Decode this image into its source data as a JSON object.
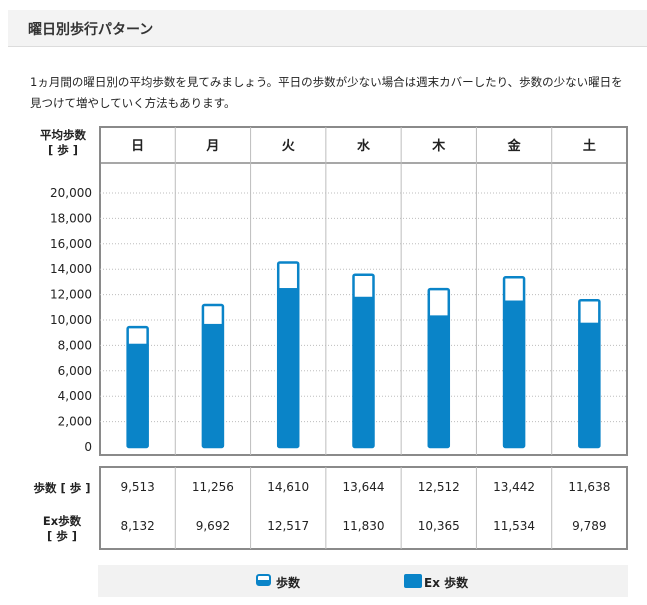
{
  "header": {
    "title": "曜日別歩行パターン"
  },
  "description": "1ヵ月間の曜日別の平均歩数を見てみましょう。平日の歩数が少ない場合は週末カバーしたり、歩数の少ない曜日を見つけて増やしていく方法もあります。",
  "chart": {
    "unit_label_line1": "平均歩数",
    "unit_label_line2": "[ 歩 ]"
  },
  "table": {
    "steps_row_label": "歩数 [ 歩 ]",
    "ex_row_label_line1": "Ex歩数",
    "ex_row_label_line2": "[ 歩 ]",
    "steps": [
      "9,513",
      "11,256",
      "14,610",
      "13,644",
      "12,512",
      "13,442",
      "11,638"
    ],
    "ex_steps": [
      "8,132",
      "9,692",
      "12,517",
      "11,830",
      "10,365",
      "11,534",
      "9,789"
    ]
  },
  "legend": {
    "steps": "歩数",
    "ex_steps": "Ex 歩数"
  },
  "colors": {
    "bar": "#0a84c8",
    "grid": "#bdbdbd",
    "frame": "#8a8a8a"
  },
  "chart_data": {
    "type": "bar",
    "categories": [
      "日",
      "月",
      "火",
      "水",
      "木",
      "金",
      "土"
    ],
    "series": [
      {
        "name": "歩数",
        "values": [
          9513,
          11256,
          14610,
          13644,
          12512,
          13442,
          11638
        ]
      },
      {
        "name": "Ex 歩数",
        "values": [
          8132,
          9692,
          12517,
          11830,
          10365,
          11534,
          9789
        ]
      }
    ],
    "yticks": [
      "0",
      "2,000",
      "4,000",
      "6,000",
      "8,000",
      "10,000",
      "12,000",
      "14,000",
      "16,000",
      "18,000",
      "20,000"
    ],
    "ylim": [
      0,
      20000
    ],
    "grid": true,
    "legend_position": "bottom"
  }
}
